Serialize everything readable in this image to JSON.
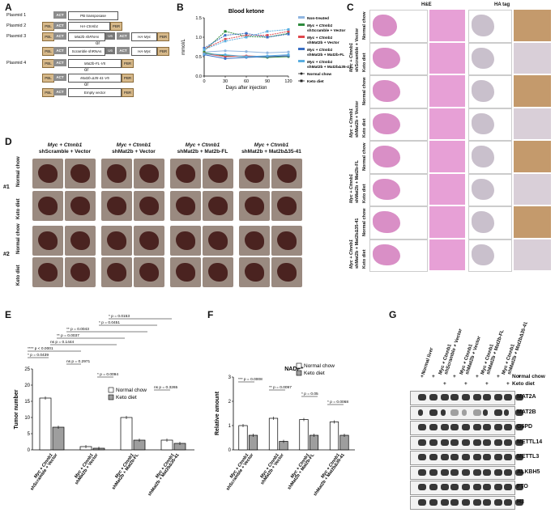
{
  "panel_labels": {
    "a": "A",
    "b": "B",
    "c": "C",
    "d": "D",
    "e": "E",
    "f": "F",
    "g": "G"
  },
  "panelA": {
    "p1": {
      "name": "Plasmid 1",
      "act": "ACT",
      "transposase": "PB transposase"
    },
    "p2": {
      "name": "Plasmid 2",
      "pbl": "PBL",
      "act": "ACT",
      "gene": "HA-Ctnnb1",
      "pbr": "PBR"
    },
    "p3": {
      "name": "Plasmid 3",
      "pbl": "PBL",
      "act": "ACT",
      "shrna": "Mat2b shRNAs",
      "u6": "U6",
      "act2": "ACT",
      "gene": "HA-Myc",
      "pbr": "PBR"
    },
    "or1": "or",
    "p3b": {
      "pbl": "PBL",
      "act": "ACT",
      "shrna": "Scramble shRNAs",
      "u6": "U6",
      "act2": "ACT",
      "gene": "HA-Myc",
      "pbr": "PBR"
    },
    "p4": {
      "name": "Plasmid 4",
      "pbl": "PBL",
      "act": "ACT",
      "gene": "Mat2b-FL-V5",
      "pbr": "PBR"
    },
    "or2": "or",
    "p4b": {
      "pbl": "PBL",
      "act": "ACT",
      "gene": "Mat2b-Δ35-41-V5",
      "pbr": "PBR"
    },
    "or3": "or",
    "p4c": {
      "pbl": "PBL",
      "act": "ACT",
      "gene": "Empty vector",
      "pbr": "PBR"
    }
  },
  "panelB": {
    "chart_data": {
      "type": "line",
      "title": "Blood ketone",
      "xlabel": "Days after injection",
      "ylabel": "mmol/L",
      "x": [
        0,
        30,
        60,
        90,
        120
      ],
      "xticks": [
        "0",
        "30",
        "60",
        "90",
        "120"
      ],
      "yticks": [
        "0.0",
        "0.5",
        "1.0",
        "1.5"
      ],
      "ylim": [
        0,
        1.5
      ],
      "series": [
        {
          "name": "Non-treated",
          "color": "#8fb5e0",
          "values": [
            0.62,
            0.65,
            0.63,
            0.6,
            0.62
          ]
        },
        {
          "name": "Myc + Ctnnb1 shScramble + Vector",
          "color": "#2e8b3d",
          "style": "normal",
          "values": [
            0.6,
            0.52,
            0.5,
            0.48,
            0.5
          ]
        },
        {
          "name": "Myc + Ctnnb1 shScramble + Vector",
          "color": "#2e8b3d",
          "style": "keto",
          "values": [
            0.65,
            1.15,
            1.02,
            1.0,
            1.1
          ]
        },
        {
          "name": "Myc + Ctnnb1 shMat2b + Vector",
          "color": "#e0474c",
          "style": "normal",
          "values": [
            0.58,
            0.5,
            0.52,
            0.5,
            0.52
          ]
        },
        {
          "name": "Myc + Ctnnb1 shMat2b + Vector",
          "color": "#e0474c",
          "style": "keto",
          "values": [
            0.7,
            0.95,
            1.05,
            1.05,
            1.15
          ]
        },
        {
          "name": "Myc + Ctnnb1 shMat2b + Mat2b-FL",
          "color": "#3a6fc4",
          "style": "normal",
          "values": [
            0.55,
            0.45,
            0.48,
            0.5,
            0.52
          ]
        },
        {
          "name": "Myc + Ctnnb1 shMat2b + Mat2b-FL",
          "color": "#3a6fc4",
          "style": "keto",
          "values": [
            0.72,
            1.05,
            1.1,
            1.0,
            1.08
          ]
        },
        {
          "name": "Myc + Ctnnb1 shMat2bΔ35-41",
          "color": "#5aaee0",
          "style": "normal",
          "values": [
            0.57,
            0.55,
            0.5,
            0.52,
            0.55
          ]
        },
        {
          "name": "Myc + Ctnnb1 shMat2bΔ35-41",
          "color": "#5aaee0",
          "style": "keto",
          "values": [
            0.68,
            0.9,
            1.0,
            1.15,
            1.2
          ]
        }
      ],
      "legend": [
        {
          "label": "Non-treated",
          "color": "#8fb5e0"
        },
        {
          "label": "Myc + Ctnnb1",
          "label2": "shScramble + Vector",
          "color": "#2e8b3d"
        },
        {
          "label": "Myc + Ctnnb1",
          "label2": "shMat2b + Vector",
          "color": "#e0474c"
        },
        {
          "label": "Myc + Ctnnb1",
          "label2": "shMat2b + Mat2b-FL",
          "color": "#3a6fc4"
        },
        {
          "label": "Myc + Ctnnb1",
          "label2": "shMat2b + Mat2bΔ35-41",
          "color": "#5aaee0"
        },
        {
          "label": "Normal chow",
          "color": "#222"
        },
        {
          "label": "Keto diet",
          "color": "#222"
        }
      ]
    }
  },
  "panelC": {
    "he": "H&E",
    "ha": "HA tag",
    "groups": [
      {
        "line1": "Myc + Ctnnb1",
        "line2": "shScramble + Vector"
      },
      {
        "line1": "Myc + Ctnnb1",
        "line2": "shMat2b + Vector"
      },
      {
        "line1": "Myc + Ctnnb1",
        "line2": "shMat2b + Mat2b-FL"
      },
      {
        "line1": "Myc + Ctnnb1",
        "line2": "shMat2b + Mat2bΔ35-41"
      }
    ],
    "normal": "Normal chow",
    "keto": "Keto diet"
  },
  "panelD": {
    "groups": [
      {
        "line1": "Myc + Ctnnb1",
        "line2": "shScramble + Vector"
      },
      {
        "line1": "Myc + Ctnnb1",
        "line2": "shMat2b + Vector"
      },
      {
        "line1": "Myc + Ctnnb1",
        "line2": "shMat2b + Mat2b-FL"
      },
      {
        "line1": "Myc + Ctnnb1",
        "line2": "shMat2b + Mat2bΔ35-41"
      }
    ],
    "rep1": "#1",
    "rep2": "#2",
    "normal": "Normal chow",
    "keto": "Keto diet"
  },
  "panelE": {
    "chart_data": {
      "type": "bar",
      "ylabel": "Tumor number",
      "yticks": [
        "0",
        "5",
        "10",
        "15",
        "20",
        "25"
      ],
      "ylim": [
        0,
        25
      ],
      "categories": [
        "Myc + Ctnnb1 shScramble + Vector",
        "Myc + Ctnnb1 shMat2b + Vector",
        "Myc + Ctnnb1 shMat2b + Mat2b-FL",
        "Myc + Ctnnb1 shMat2b + Mat2bΔ35-41"
      ],
      "series": [
        {
          "name": "Normal chow",
          "values": [
            16,
            1,
            10,
            3
          ]
        },
        {
          "name": "Keto diet",
          "values": [
            7,
            0.5,
            3,
            2
          ]
        }
      ],
      "legend": [
        "Normal chow",
        "Keto diet"
      ],
      "stats": [
        "* p = 0.0153",
        "* p = 0.0451",
        "** p = 0.0043",
        "** p = 0.0037",
        "ns p = 0.1444",
        "**** p < 0.0001",
        "* p = 0.0439",
        "ns p = 0.2971",
        "* p = 0.0094",
        "ns p = 0.3265"
      ]
    }
  },
  "panelF": {
    "chart_data": {
      "type": "bar",
      "title": "NADP⁺",
      "ylabel": "Relative amount",
      "yticks": [
        "0",
        "1",
        "2",
        "3"
      ],
      "ylim": [
        0,
        3
      ],
      "categories": [
        "Myc + Ctnnb1 shScramble + Vector",
        "Myc + Ctnnb1 shMat2b + Vector",
        "Myc + Ctnnb1 shMat2b + Mat2b-FL",
        "Myc + Ctnnb1 shMat2b + Mat2bΔ35-41"
      ],
      "series": [
        {
          "name": "Normal chow",
          "values": [
            1.0,
            1.3,
            1.25,
            1.15
          ]
        },
        {
          "name": "Keto diet",
          "values": [
            0.6,
            0.35,
            0.6,
            0.6
          ]
        }
      ],
      "legend": [
        "Normal chow",
        "Keto diet"
      ],
      "stats": [
        "*** p = 0.0008",
        "** p = 0.0097",
        "* p = 0.05",
        "* p = 0.0068"
      ]
    }
  },
  "panelG": {
    "columns": [
      "Normal liver",
      "Myc + Ctnnb1 shScramble + Vector",
      "Myc + Ctnnb1 shMat2b + Vector",
      "Myc + Ctnnb1 shMat2b + Mat2b-FL",
      "Myc + Ctnnb1 shMat2b + Mat2bΔ35-41"
    ],
    "normal": "Normal chow",
    "keto": "Keto diet",
    "proteins": [
      "MAT2A",
      "MAT2B",
      "G6PD",
      "METTL14",
      "METTL3",
      "ALKBH5",
      "FTO",
      "H3"
    ]
  }
}
